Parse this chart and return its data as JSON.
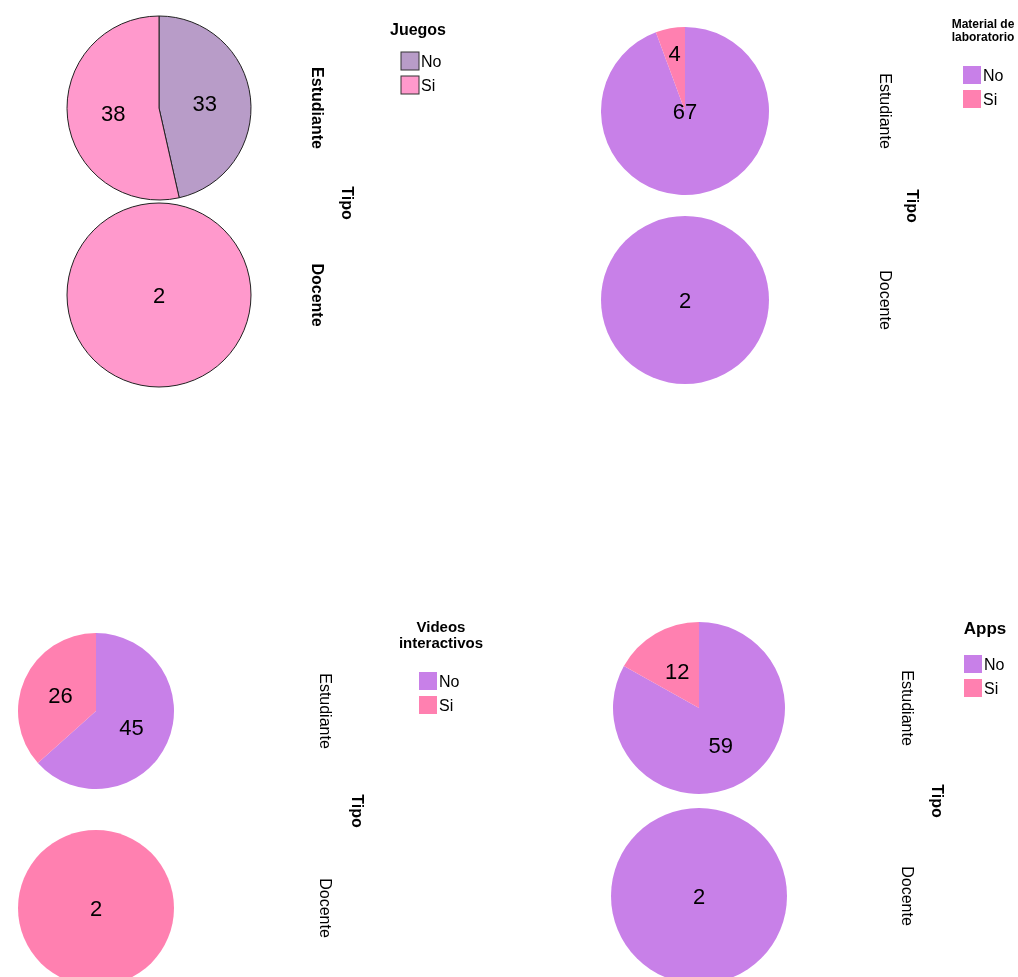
{
  "chart_data": [
    {
      "type": "pie",
      "title": "Estudiante",
      "legend_title": "Juegos",
      "legend": "right",
      "annotations": [
        "Tipo"
      ],
      "categories": [
        "No",
        "Si"
      ],
      "values": [
        33,
        38
      ],
      "colors": [
        "#b89cc8",
        "#ff99cc"
      ],
      "value_labels": [
        "33",
        "38"
      ]
    },
    {
      "type": "pie",
      "title": "Docente",
      "categories": [
        null
      ],
      "values": [
        2
      ],
      "colors": [
        "#ff99cc"
      ],
      "data_labels": true
    },
    {
      "type": "pie",
      "title": "Estudiante",
      "legend_title": "Material de laboratorio",
      "legend": "right",
      "annotations": [
        "Tipo"
      ],
      "categories": [
        "No",
        "Si"
      ],
      "values": [
        67,
        4
      ],
      "colors": [
        "#c880e8",
        "#ff80b0"
      ],
      "value_labels": [
        "67",
        "4"
      ]
    },
    {
      "type": "pie",
      "title": "Docente",
      "categories": [
        null
      ],
      "values": [
        2
      ],
      "colors": [
        "#c880e8"
      ],
      "data_labels": true
    },
    {
      "type": "pie",
      "title": "Estudiante",
      "legend_title": "Videos interactivos",
      "legend": "right",
      "annotations": [
        "Tipo"
      ],
      "categories": [
        "No",
        "Si"
      ],
      "values": [
        45,
        26
      ],
      "colors": [
        "#c880e8",
        "#ff80b0"
      ],
      "value_labels": [
        "45",
        "26"
      ]
    },
    {
      "type": "pie",
      "title": "Docente",
      "categories": [
        null
      ],
      "values": [
        2
      ],
      "colors": [
        "#ff80b0"
      ],
      "data_labels": true
    },
    {
      "type": "pie",
      "title": "Estudiante",
      "legend_title": "Apps",
      "legend": "right",
      "annotations": [
        "Tipo"
      ],
      "categories": [
        "No",
        "Si"
      ],
      "values": [
        59,
        12
      ],
      "colors": [
        "#c880e8",
        "#ff80b0"
      ],
      "value_labels": [
        "59",
        "12"
      ]
    },
    {
      "type": "pie",
      "title": "Docente",
      "categories": [
        null
      ],
      "values": [
        2
      ],
      "colors": [
        "#c880e8"
      ],
      "data_labels": true
    }
  ]
}
